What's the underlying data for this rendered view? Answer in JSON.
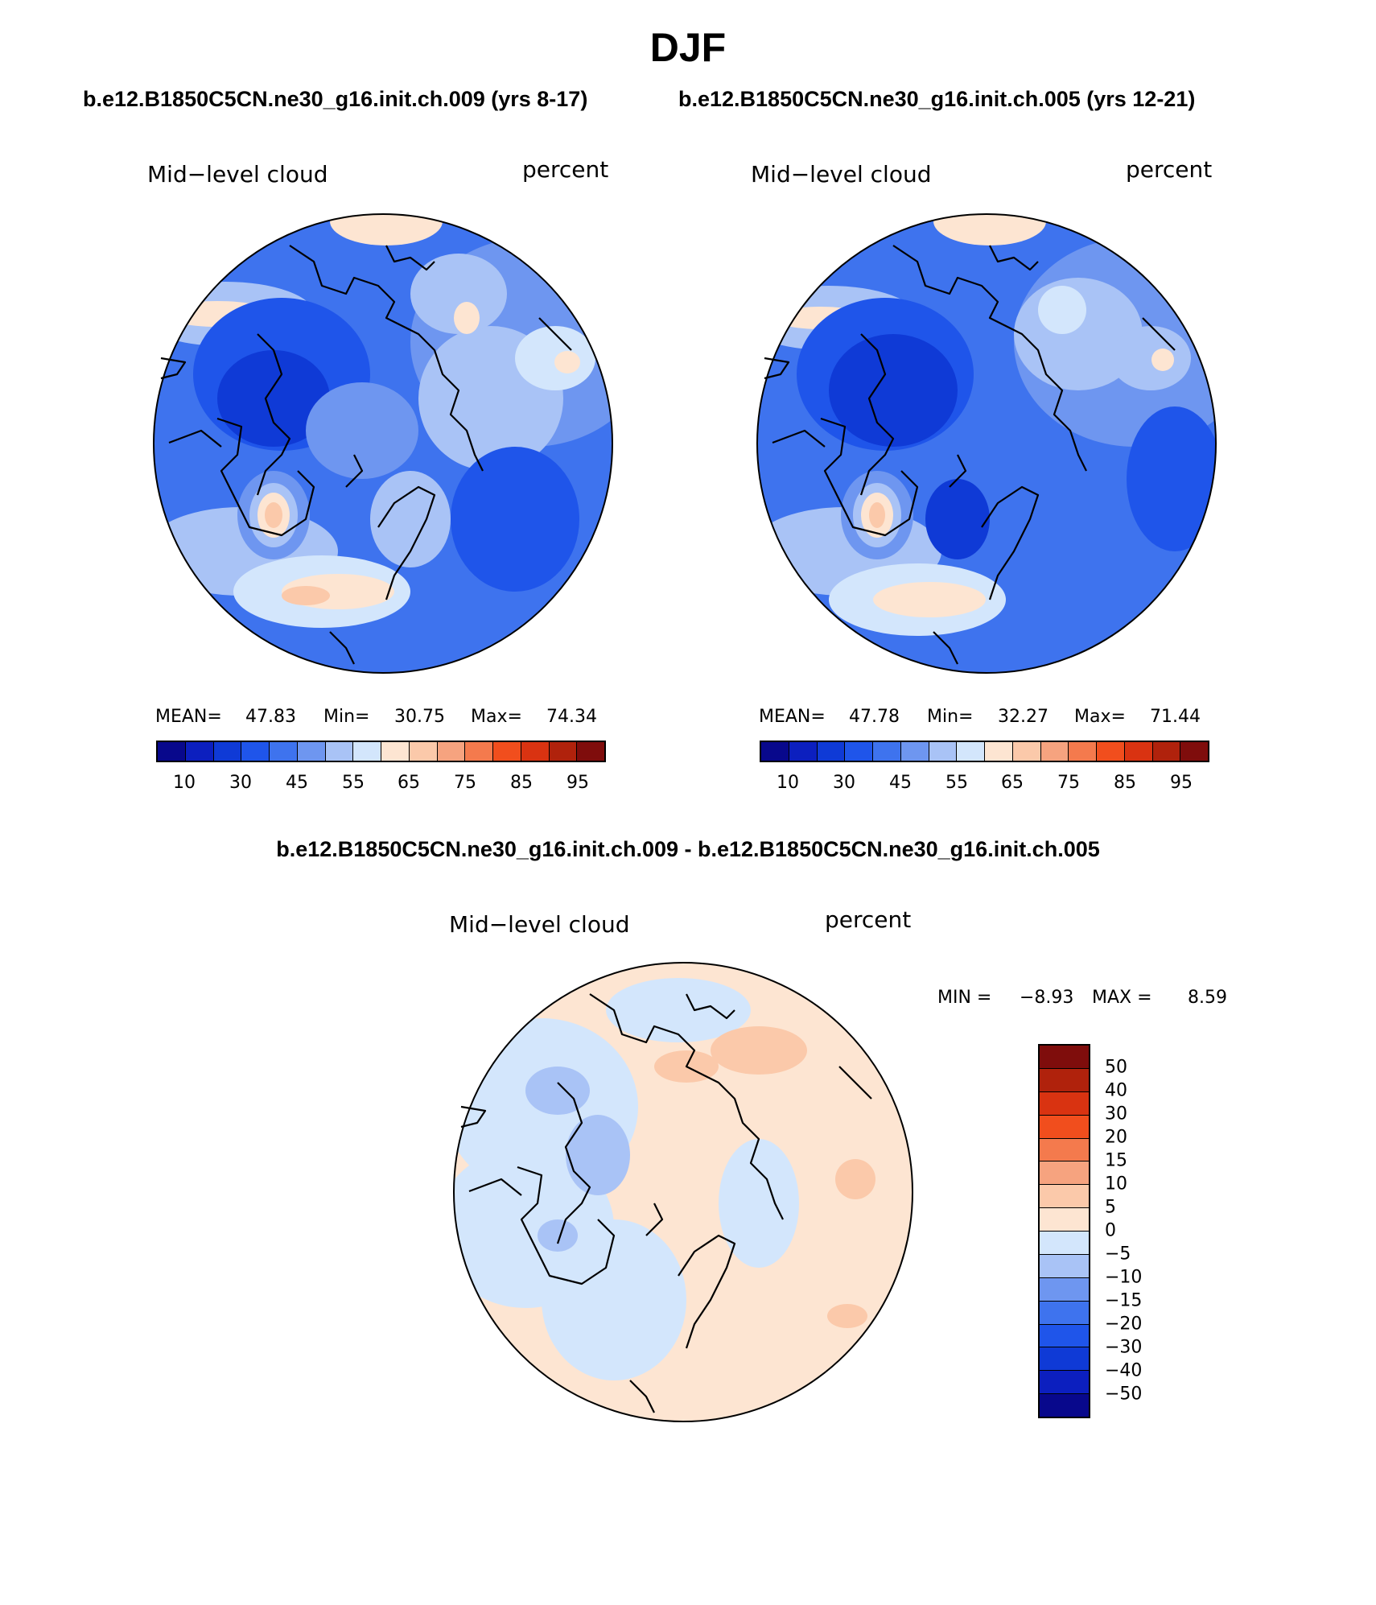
{
  "title": "DJF",
  "colors": {
    "seq": [
      "#08088c",
      "#0c1fbf",
      "#0f3ad6",
      "#1f55ea",
      "#3e73ee",
      "#6e96f0",
      "#a9c3f6",
      "#d3e6fc",
      "#fde5d2",
      "#fbc9aa",
      "#f6a37f",
      "#f47a4d",
      "#f14e1d",
      "#d93311",
      "#b0220c",
      "#7f0d0c"
    ],
    "div": [
      "#7f0d0c",
      "#b0220c",
      "#d93311",
      "#f14e1d",
      "#f47a4d",
      "#f6a37f",
      "#fbc9aa",
      "#fde5d2",
      "#d3e6fc",
      "#a9c3f6",
      "#6e96f0",
      "#3e73ee",
      "#1f55ea",
      "#0f3ad6",
      "#0c1fbf",
      "#08088c"
    ]
  },
  "panels": [
    {
      "subtitle": "b.e12.B1850C5CN.ne30_g16.init.ch.009 (yrs 8-17)",
      "left_label": "Mid−level cloud",
      "right_label": "percent",
      "stats": {
        "mean_label": "MEAN=",
        "mean": "47.83",
        "min_label": "Min=",
        "min": "30.75",
        "max_label": "Max=",
        "max": "74.34"
      },
      "ticks": [
        "10",
        "30",
        "45",
        "55",
        "65",
        "75",
        "85",
        "95"
      ]
    },
    {
      "subtitle": "b.e12.B1850C5CN.ne30_g16.init.ch.005 (yrs 12-21)",
      "left_label": "Mid−level cloud",
      "right_label": "percent",
      "stats": {
        "mean_label": "MEAN=",
        "mean": "47.78",
        "min_label": "Min=",
        "min": "32.27",
        "max_label": "Max=",
        "max": "71.44"
      },
      "ticks": [
        "10",
        "30",
        "45",
        "55",
        "65",
        "75",
        "85",
        "95"
      ]
    }
  ],
  "diff": {
    "subtitle": "b.e12.B1850C5CN.ne30_g16.init.ch.009 - b.e12.B1850C5CN.ne30_g16.init.ch.005",
    "left_label": "Mid−level cloud",
    "right_label": "percent",
    "stats": {
      "min_label": "MIN =",
      "min": "−8.93",
      "max_label": "MAX =",
      "max": "8.59"
    },
    "ticks": [
      "50",
      "40",
      "30",
      "20",
      "15",
      "10",
      "5",
      "0",
      "−5",
      "−10",
      "−15",
      "−20",
      "−30",
      "−40",
      "−50"
    ]
  }
}
